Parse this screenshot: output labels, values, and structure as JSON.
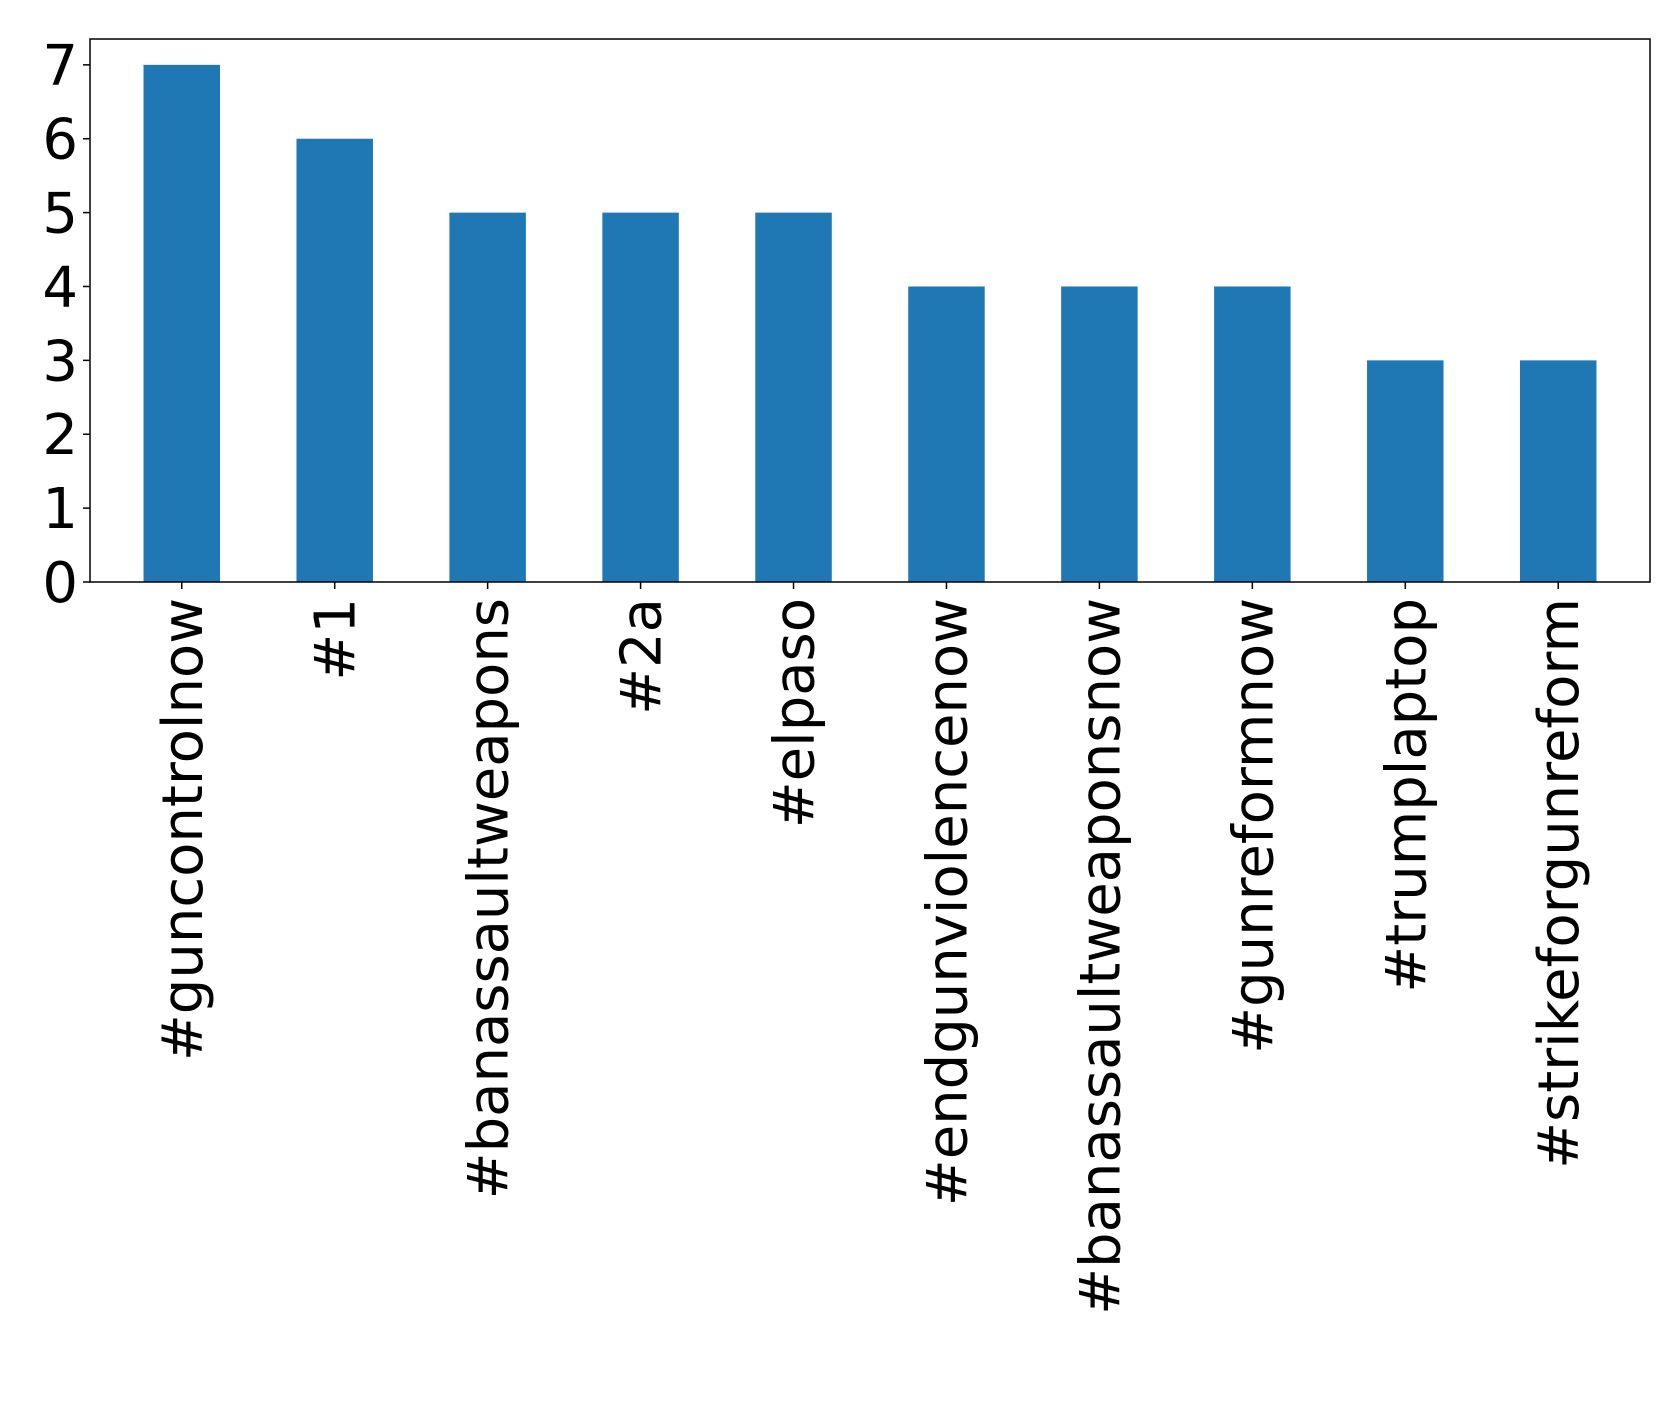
{
  "chart_data": {
    "type": "bar",
    "categories": [
      "#guncontrolnow",
      "#1",
      "#banassaultweapons",
      "#2a",
      "#elpaso",
      "#endgunviolencenow",
      "#banassaultweaponsnow",
      "#gunreformnow",
      "#trumplaptop",
      "#strikeforgunreform"
    ],
    "values": [
      7,
      6,
      5,
      5,
      5,
      4,
      4,
      4,
      3,
      3
    ],
    "title": "",
    "xlabel": "",
    "ylabel": "",
    "ylim": [
      0,
      7.35
    ],
    "yticks": [
      0,
      1,
      2,
      3,
      4,
      5,
      6,
      7
    ],
    "grid": false,
    "legend": "none",
    "colors": {
      "bar": "#1f77b4",
      "axis": "#000000"
    }
  }
}
